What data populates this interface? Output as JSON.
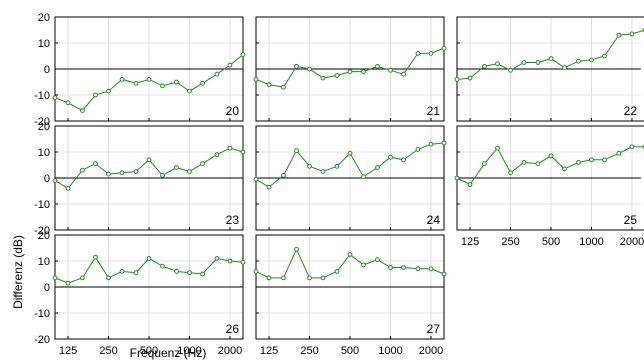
{
  "figure": {
    "ylabel": "Differenz (dB)",
    "xlabel": "Frequenz (Hz)",
    "series_color": "#1f8c1f",
    "zero_line_color": "#000000",
    "grid_color": "#d9d9d9"
  },
  "chart_data": [
    {
      "type": "line",
      "panel_label": "20",
      "grid": true,
      "x_ticks": [
        125,
        250,
        500,
        1000,
        2000
      ],
      "x_tick_labels": [],
      "x_log_scale": true,
      "y_ticks": [
        -20,
        -10,
        0,
        10,
        20
      ],
      "y_tick_labels": [
        "-20",
        "-10",
        "0",
        "10",
        "20"
      ],
      "ylim": [
        -20,
        20
      ],
      "x": [
        100,
        125,
        160,
        200,
        250,
        315,
        400,
        500,
        630,
        800,
        1000,
        1250,
        1600,
        2000,
        2500
      ],
      "values": [
        -11,
        -13,
        -16,
        -10,
        -8.5,
        -4,
        -5.5,
        -4,
        -6.5,
        -5,
        -8.5,
        -5.5,
        -2,
        1.5,
        5.5
      ]
    },
    {
      "type": "line",
      "panel_label": "21",
      "grid": true,
      "x_ticks": [
        125,
        250,
        500,
        1000,
        2000
      ],
      "x_tick_labels": [],
      "x_log_scale": true,
      "y_ticks": [
        -20,
        -10,
        0,
        10,
        20
      ],
      "y_tick_labels": [],
      "ylim": [
        -20,
        20
      ],
      "x": [
        100,
        125,
        160,
        200,
        250,
        315,
        400,
        500,
        630,
        800,
        1000,
        1250,
        1600,
        2000,
        2500
      ],
      "values": [
        -4,
        -6,
        -7,
        1,
        0,
        -3.5,
        -2.5,
        -1,
        -1,
        1,
        -0.5,
        -2,
        6,
        6,
        8
      ]
    },
    {
      "type": "line",
      "panel_label": "22",
      "grid": true,
      "x_ticks": [
        125,
        250,
        500,
        1000,
        2000
      ],
      "x_tick_labels": [],
      "x_log_scale": true,
      "y_ticks": [
        -20,
        -10,
        0,
        10,
        20
      ],
      "y_tick_labels": [],
      "ylim": [
        -20,
        20
      ],
      "x": [
        100,
        125,
        160,
        200,
        250,
        315,
        400,
        500,
        630,
        800,
        1000,
        1250,
        1600,
        2000,
        2500
      ],
      "values": [
        -4,
        -3.5,
        1,
        2,
        -0.5,
        2.5,
        2.5,
        4,
        0.5,
        3,
        3.5,
        5,
        13,
        13.5,
        15
      ]
    },
    {
      "type": "line",
      "panel_label": "23",
      "grid": true,
      "x_ticks": [
        125,
        250,
        500,
        1000,
        2000
      ],
      "x_tick_labels": [],
      "x_log_scale": true,
      "y_ticks": [
        -20,
        -10,
        0,
        10,
        20
      ],
      "y_tick_labels": [
        "-20",
        "-10",
        "0",
        "10",
        "20"
      ],
      "ylim": [
        -20,
        20
      ],
      "x": [
        100,
        125,
        160,
        200,
        250,
        315,
        400,
        500,
        630,
        800,
        1000,
        1250,
        1600,
        2000,
        2500
      ],
      "values": [
        -1,
        -4,
        3,
        5.5,
        1.5,
        2,
        2.5,
        7,
        1,
        4,
        2.5,
        5.5,
        9,
        11.5,
        10
      ]
    },
    {
      "type": "line",
      "panel_label": "24",
      "grid": true,
      "x_ticks": [
        125,
        250,
        500,
        1000,
        2000
      ],
      "x_tick_labels": [],
      "x_log_scale": true,
      "y_ticks": [
        -20,
        -10,
        0,
        10,
        20
      ],
      "y_tick_labels": [],
      "ylim": [
        -20,
        20
      ],
      "x": [
        100,
        125,
        160,
        200,
        250,
        315,
        400,
        500,
        630,
        800,
        1000,
        1250,
        1600,
        2000,
        2500
      ],
      "values": [
        -0.5,
        -3.5,
        1,
        10.5,
        4.5,
        2.5,
        4.5,
        9.5,
        0.5,
        4,
        8,
        7,
        11,
        13,
        13.5
      ]
    },
    {
      "type": "line",
      "panel_label": "25",
      "grid": true,
      "x_ticks": [
        125,
        250,
        500,
        1000,
        2000
      ],
      "x_tick_labels": [
        "125",
        "250",
        "500",
        "1000",
        "2000"
      ],
      "x_log_scale": true,
      "y_ticks": [
        -20,
        -10,
        0,
        10,
        20
      ],
      "y_tick_labels": [],
      "ylim": [
        -20,
        20
      ],
      "x": [
        100,
        125,
        160,
        200,
        250,
        315,
        400,
        500,
        630,
        800,
        1000,
        1250,
        1600,
        2000,
        2500
      ],
      "values": [
        0,
        -2.5,
        5.5,
        11.5,
        2,
        6,
        5.5,
        8.5,
        3.5,
        6,
        7,
        7,
        9.5,
        12,
        12
      ]
    },
    {
      "type": "line",
      "panel_label": "26",
      "grid": true,
      "x_ticks": [
        125,
        250,
        500,
        1000,
        2000
      ],
      "x_tick_labels": [
        "125",
        "250",
        "500",
        "1000",
        "2000"
      ],
      "x_log_scale": true,
      "y_ticks": [
        -20,
        -10,
        0,
        10,
        20
      ],
      "y_tick_labels": [
        "-20",
        "-10",
        "0",
        "10",
        "20"
      ],
      "ylim": [
        -20,
        20
      ],
      "x": [
        100,
        125,
        160,
        200,
        250,
        315,
        400,
        500,
        630,
        800,
        1000,
        1250,
        1600,
        2000,
        2500
      ],
      "values": [
        3.5,
        1.5,
        3.5,
        11.5,
        3.5,
        6,
        5.5,
        11,
        8,
        6,
        5.5,
        5,
        11,
        10,
        9.5
      ]
    },
    {
      "type": "line",
      "panel_label": "27",
      "grid": true,
      "x_ticks": [
        125,
        250,
        500,
        1000,
        2000
      ],
      "x_tick_labels": [
        "125",
        "250",
        "500",
        "1000",
        "2000"
      ],
      "x_log_scale": true,
      "y_ticks": [
        -20,
        -10,
        0,
        10,
        20
      ],
      "y_tick_labels": [],
      "ylim": [
        -20,
        20
      ],
      "x": [
        100,
        125,
        160,
        200,
        250,
        315,
        400,
        500,
        630,
        800,
        1000,
        1250,
        1600,
        2000,
        2500
      ],
      "values": [
        6,
        3.5,
        3.5,
        14.5,
        3.5,
        3.5,
        6,
        12.5,
        8.5,
        10.5,
        7.5,
        7.5,
        7,
        7,
        5
      ]
    }
  ]
}
